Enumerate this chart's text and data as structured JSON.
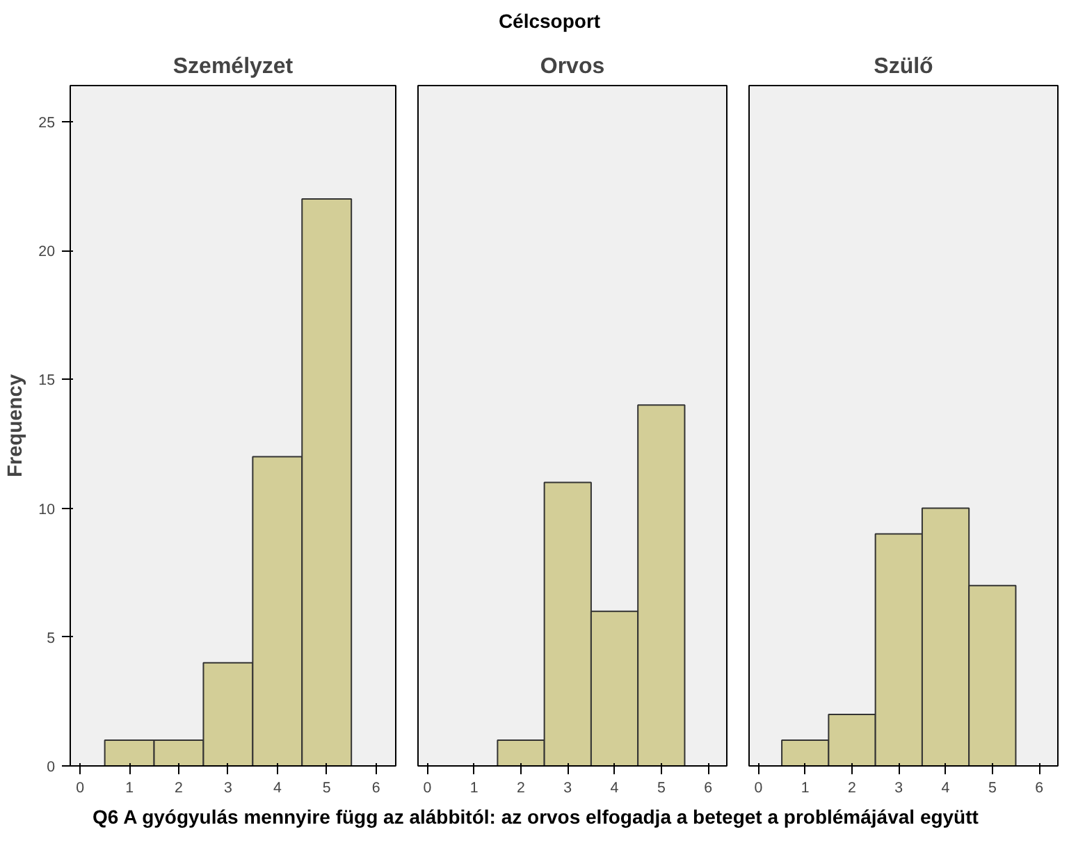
{
  "chart_data": [
    {
      "type": "histogram",
      "title": "Személyzet",
      "annotations": [
        "Célcsoport"
      ],
      "ylabel": "Frequency",
      "bins": [
        0.5,
        1.5,
        2.5,
        3.5,
        4.5,
        5.5
      ],
      "values": [
        1,
        1,
        4,
        12,
        22
      ],
      "color": "#d3ce97",
      "xlim": [
        -0.2,
        6.4
      ],
      "xticks": [
        0,
        1,
        2,
        3,
        4,
        5,
        6
      ],
      "ylim": [
        0,
        26.4
      ],
      "yticks": [
        0,
        5,
        10,
        15,
        20,
        25
      ],
      "grid": false
    },
    {
      "type": "histogram",
      "title": "Orvos",
      "xlabel": "Q6 A gyógyulás mennyire függ az alábbitól: az orvos elfogadja a beteget a problémájával együtt",
      "bins": [
        0.5,
        1.5,
        2.5,
        3.5,
        4.5,
        5.5
      ],
      "values": [
        0,
        1,
        11,
        6,
        14
      ],
      "color": "#d3ce97",
      "xlim": [
        -0.2,
        6.4
      ],
      "xticks": [
        0,
        1,
        2,
        3,
        4,
        5,
        6
      ],
      "ylim": [
        0,
        26.4
      ],
      "tick_labels": "x",
      "grid": false
    },
    {
      "type": "histogram",
      "title": "Szülő",
      "bins": [
        0.5,
        1.5,
        2.5,
        3.5,
        4.5,
        5.5
      ],
      "values": [
        1,
        2,
        9,
        10,
        7
      ],
      "color": "#d3ce97",
      "xlim": [
        -0.2,
        6.4
      ],
      "xticks": [
        0,
        1,
        2,
        3,
        4,
        5,
        6
      ],
      "ylim": [
        0,
        26.4
      ],
      "tick_labels": "x",
      "grid": false
    }
  ]
}
